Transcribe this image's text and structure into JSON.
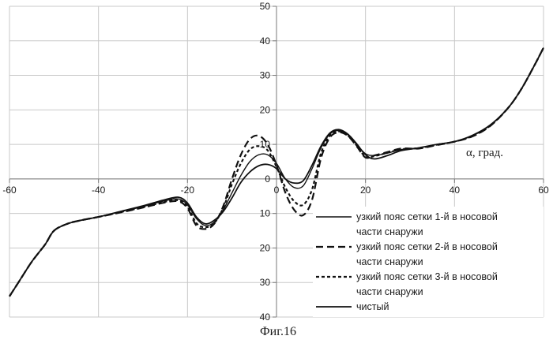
{
  "chart_data": {
    "type": "line",
    "xlabel": "α, град.",
    "ylabel": "",
    "caption": "Фиг.16",
    "xlim": [
      -60,
      60
    ],
    "ylim": [
      -40,
      50
    ],
    "xticks": [
      -60,
      -40,
      -20,
      0,
      20,
      40,
      60
    ],
    "xtick_labels": [
      "-60",
      "-40",
      "-20",
      "0",
      "20",
      "40",
      "60"
    ],
    "yticks": [
      50,
      40,
      30,
      20,
      10,
      0,
      -10,
      -20,
      -30,
      -40
    ],
    "ytick_labels": [
      "50",
      "40",
      "30",
      "20",
      "10",
      "0",
      "10",
      "20",
      "30",
      "40"
    ],
    "grid": true,
    "legend_position": "bottom-right",
    "series": [
      {
        "name": "узкий пояс сетки 1-й в носовой части снаружи",
        "style": "solid",
        "x": [
          -60,
          -58,
          -55,
          -52,
          -50,
          -47,
          -44,
          -40,
          -35,
          -30,
          -25,
          -22,
          -20,
          -18,
          -16,
          -14,
          -12,
          -10,
          -8,
          -6,
          -4,
          -2,
          0,
          2,
          4,
          6,
          8,
          10,
          12,
          14,
          16,
          18,
          20,
          22,
          25,
          28,
          32,
          36,
          40,
          44,
          48,
          52,
          55,
          58,
          60
        ],
        "y": [
          -34,
          -30,
          -24,
          -19,
          -15,
          -13,
          -12,
          -11,
          -9.5,
          -8,
          -6.3,
          -5.8,
          -7.5,
          -11.5,
          -13.5,
          -12.5,
          -9,
          -4,
          1,
          5,
          7,
          7,
          4.5,
          0,
          -2.5,
          -2,
          3,
          9,
          13,
          14,
          12.8,
          10,
          7.3,
          6.8,
          7.5,
          8.5,
          9,
          10,
          10.8,
          12.5,
          15.5,
          20.5,
          26,
          33,
          38
        ]
      },
      {
        "name": "узкий пояс сетки 2-й в носовой части снаружи",
        "style": "longdash",
        "x": [
          -60,
          -58,
          -55,
          -52,
          -50,
          -47,
          -44,
          -40,
          -35,
          -30,
          -25,
          -22,
          -20,
          -18,
          -16,
          -14,
          -12,
          -10,
          -8,
          -6,
          -4,
          -2,
          0,
          2,
          4,
          6,
          8,
          10,
          12,
          14,
          16,
          18,
          20,
          22,
          25,
          28,
          32,
          36,
          40,
          44,
          48,
          52,
          55,
          58,
          60
        ],
        "y": [
          -34,
          -30,
          -24,
          -19,
          -15,
          -13,
          -12,
          -11,
          -9.7,
          -8.3,
          -6.8,
          -6.5,
          -8.5,
          -13.5,
          -14.5,
          -13,
          -8,
          0,
          7,
          11.5,
          12.5,
          10,
          4,
          -4,
          -9,
          -10.5,
          -6,
          6,
          12,
          13.5,
          12.5,
          9.5,
          6.2,
          6.8,
          7.8,
          8.8,
          8.8,
          9.8,
          10.8,
          12.3,
          15.3,
          20.5,
          26,
          33,
          38
        ]
      },
      {
        "name": "узкий пояс сетки 3-й в носовой части снаружи",
        "style": "shortdash",
        "x": [
          -60,
          -58,
          -55,
          -52,
          -50,
          -47,
          -44,
          -40,
          -35,
          -30,
          -25,
          -22,
          -20,
          -18,
          -16,
          -14,
          -12,
          -10,
          -8,
          -6,
          -4,
          -2,
          0,
          2,
          4,
          6,
          8,
          10,
          12,
          14,
          16,
          18,
          20,
          22,
          25,
          28,
          32,
          36,
          40,
          44,
          48,
          52,
          55,
          58,
          60
        ],
        "y": [
          -34,
          -30,
          -24,
          -19,
          -15,
          -13,
          -12,
          -11,
          -9.6,
          -8.2,
          -6.6,
          -6.2,
          -8,
          -12.8,
          -14,
          -12.8,
          -8.5,
          -1.5,
          4.5,
          8.5,
          9.5,
          8.3,
          3.5,
          -2.5,
          -6.5,
          -7.5,
          -3,
          7.5,
          12.5,
          13.8,
          12.6,
          9.7,
          6.4,
          6.6,
          7.6,
          8.6,
          8.9,
          9.9,
          10.8,
          12.4,
          15.4,
          20.5,
          26,
          33,
          38
        ]
      },
      {
        "name": "чистый",
        "style": "solid",
        "x": [
          -60,
          -58,
          -55,
          -52,
          -50,
          -47,
          -44,
          -40,
          -35,
          -30,
          -25,
          -22,
          -20,
          -18,
          -16,
          -14,
          -12,
          -10,
          -8,
          -6,
          -4,
          -2,
          0,
          2,
          4,
          6,
          8,
          10,
          12,
          14,
          16,
          18,
          20,
          22,
          25,
          28,
          32,
          36,
          40,
          44,
          48,
          52,
          55,
          58,
          60
        ],
        "y": [
          -34,
          -30,
          -24,
          -19,
          -15,
          -13,
          -12,
          -11,
          -9.4,
          -7.8,
          -6,
          -5.3,
          -7,
          -11,
          -13,
          -12,
          -9.5,
          -5.5,
          -1,
          2,
          3.8,
          4.2,
          3,
          0,
          -1.2,
          -0.5,
          4,
          9.5,
          13.3,
          14.3,
          13,
          10.2,
          7,
          5.8,
          6.8,
          8.2,
          9,
          10,
          10.8,
          12.6,
          15.6,
          20.5,
          26,
          33,
          38
        ]
      }
    ],
    "legend": [
      {
        "line1": "узкий пояс сетки 1-й в носовой",
        "line2": "части снаружи",
        "style": "solid"
      },
      {
        "line1": "узкий пояс сетки 2-й  в носовой",
        "line2": "части снаружи",
        "style": "longdash"
      },
      {
        "line1": "узкий пояс сетки 3-й в носовой",
        "line2": "части снаружи",
        "style": "shortdash"
      },
      {
        "line1": "чистый",
        "line2": "",
        "style": "solid"
      }
    ]
  }
}
